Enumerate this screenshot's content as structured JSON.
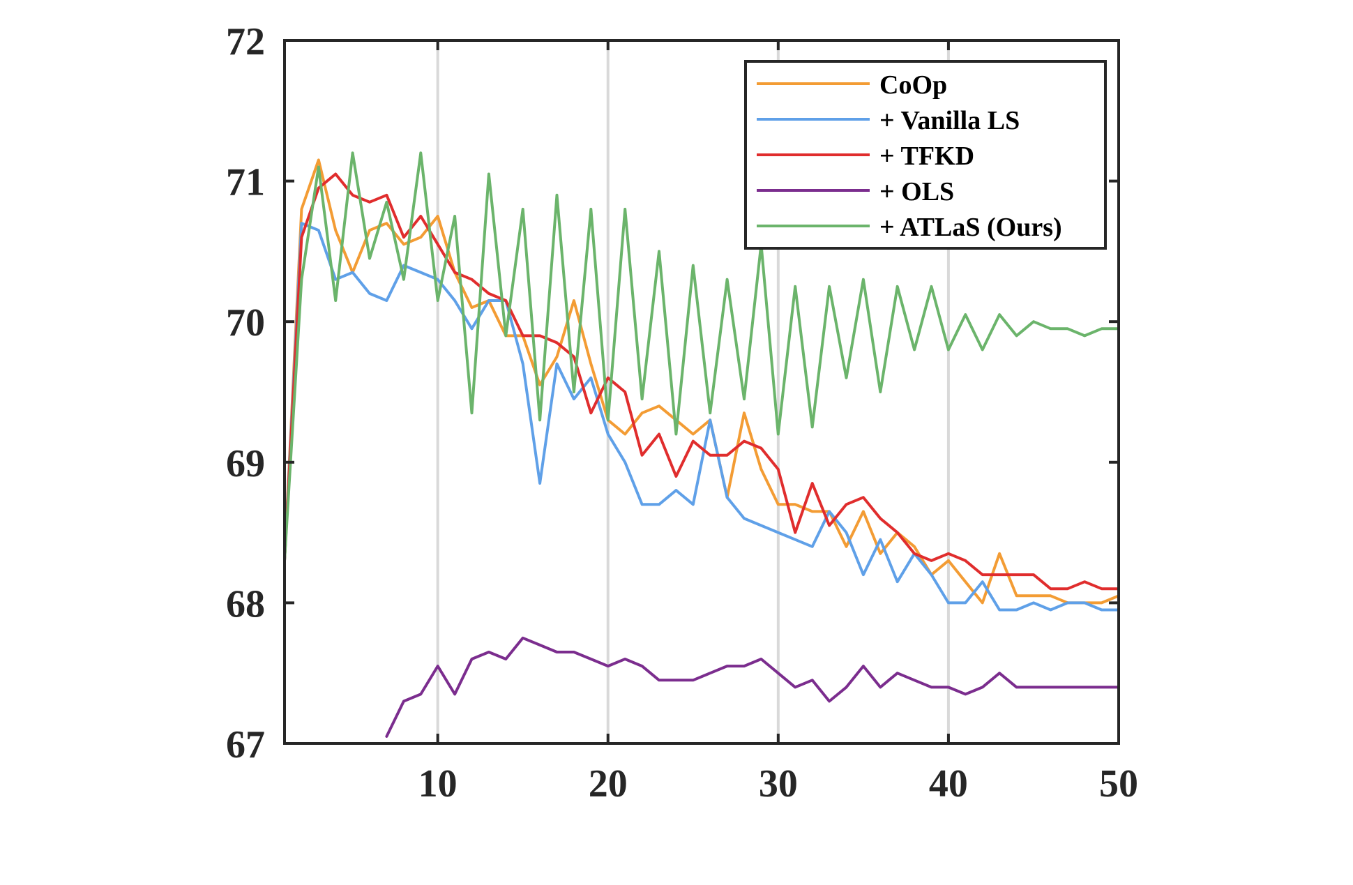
{
  "chart_data": {
    "type": "line",
    "title": "",
    "xlabel": "",
    "ylabel": "",
    "xlim": [
      1,
      50
    ],
    "ylim": [
      67,
      72
    ],
    "xticks": [
      10,
      20,
      30,
      40,
      50
    ],
    "yticks": [
      67,
      68,
      69,
      70,
      71,
      72
    ],
    "x_tick_labels": [
      "10",
      "20",
      "30",
      "40",
      "50"
    ],
    "y_tick_labels": [
      "67",
      "68",
      "69",
      "70",
      "71",
      "72"
    ],
    "grid": "vertical",
    "legend_position": "top-right",
    "series": [
      {
        "name": "CoOp",
        "color": "#F39C34",
        "x": [
          1,
          2,
          3,
          4,
          5,
          6,
          7,
          8,
          9,
          10,
          11,
          12,
          13,
          14,
          15,
          16,
          17,
          18,
          19,
          20,
          21,
          22,
          23,
          24,
          25,
          26,
          27,
          28,
          29,
          30,
          31,
          32,
          33,
          34,
          35,
          36,
          37,
          38,
          39,
          40,
          41,
          42,
          43,
          44,
          45,
          46,
          47,
          48,
          49,
          50
        ],
        "values": [
          68.3,
          70.8,
          71.15,
          70.65,
          70.35,
          70.65,
          70.7,
          70.55,
          70.6,
          70.75,
          70.35,
          70.1,
          70.15,
          69.9,
          69.9,
          69.55,
          69.75,
          70.15,
          69.7,
          69.3,
          69.2,
          69.35,
          69.4,
          69.3,
          69.2,
          69.3,
          68.75,
          69.35,
          68.95,
          68.7,
          68.7,
          68.65,
          68.65,
          68.4,
          68.65,
          68.35,
          68.5,
          68.4,
          68.2,
          68.3,
          68.15,
          68.0,
          68.35,
          68.05,
          68.05,
          68.05,
          68.0,
          68.0,
          68.0,
          68.05
        ]
      },
      {
        "name": "+ Vanilla LS",
        "color": "#5FA0E8",
        "x": [
          1,
          2,
          3,
          4,
          5,
          6,
          7,
          8,
          9,
          10,
          11,
          12,
          13,
          14,
          15,
          16,
          17,
          18,
          19,
          20,
          21,
          22,
          23,
          24,
          25,
          26,
          27,
          28,
          29,
          30,
          31,
          32,
          33,
          34,
          35,
          36,
          37,
          38,
          39,
          40,
          41,
          42,
          43,
          44,
          45,
          46,
          47,
          48,
          49,
          50
        ],
        "values": [
          68.3,
          70.7,
          70.65,
          70.3,
          70.35,
          70.2,
          70.15,
          70.4,
          70.35,
          70.3,
          70.15,
          69.95,
          70.15,
          70.15,
          69.7,
          68.85,
          69.7,
          69.45,
          69.6,
          69.2,
          69.0,
          68.7,
          68.7,
          68.8,
          68.7,
          69.3,
          68.75,
          68.6,
          68.55,
          68.5,
          68.45,
          68.4,
          68.65,
          68.5,
          68.2,
          68.45,
          68.15,
          68.35,
          68.2,
          68.0,
          68.0,
          68.15,
          67.95,
          67.95,
          68.0,
          67.95,
          68.0,
          68.0,
          67.95,
          67.95
        ]
      },
      {
        "name": "+ TFKD",
        "color": "#E02D2D",
        "x": [
          1,
          2,
          3,
          4,
          5,
          6,
          7,
          8,
          9,
          10,
          11,
          12,
          13,
          14,
          15,
          16,
          17,
          18,
          19,
          20,
          21,
          22,
          23,
          24,
          25,
          26,
          27,
          28,
          29,
          30,
          31,
          32,
          33,
          34,
          35,
          36,
          37,
          38,
          39,
          40,
          41,
          42,
          43,
          44,
          45,
          46,
          47,
          48,
          49,
          50
        ],
        "values": [
          68.3,
          70.6,
          70.95,
          71.05,
          70.9,
          70.85,
          70.9,
          70.6,
          70.75,
          70.55,
          70.35,
          70.3,
          70.2,
          70.15,
          69.9,
          69.9,
          69.85,
          69.75,
          69.35,
          69.6,
          69.5,
          69.05,
          69.2,
          68.9,
          69.15,
          69.05,
          69.05,
          69.15,
          69.1,
          68.95,
          68.5,
          68.85,
          68.55,
          68.7,
          68.75,
          68.6,
          68.5,
          68.35,
          68.3,
          68.35,
          68.3,
          68.2,
          68.2,
          68.2,
          68.2,
          68.1,
          68.1,
          68.15,
          68.1,
          68.1
        ]
      },
      {
        "name": "+ OLS",
        "color": "#7B2D8E",
        "x": [
          7,
          8,
          9,
          10,
          11,
          12,
          13,
          14,
          15,
          16,
          17,
          18,
          19,
          20,
          21,
          22,
          23,
          24,
          25,
          26,
          27,
          28,
          29,
          30,
          31,
          32,
          33,
          34,
          35,
          36,
          37,
          38,
          39,
          40,
          41,
          42,
          43,
          44,
          45,
          46,
          47,
          48,
          49,
          50
        ],
        "values": [
          67.05,
          67.3,
          67.35,
          67.55,
          67.35,
          67.6,
          67.65,
          67.6,
          67.75,
          67.7,
          67.65,
          67.65,
          67.6,
          67.55,
          67.6,
          67.55,
          67.45,
          67.45,
          67.45,
          67.5,
          67.55,
          67.55,
          67.6,
          67.5,
          67.4,
          67.45,
          67.3,
          67.4,
          67.55,
          67.4,
          67.5,
          67.45,
          67.4,
          67.4,
          67.35,
          67.4,
          67.5,
          67.4,
          67.4,
          67.4,
          67.4,
          67.4,
          67.4,
          67.4
        ]
      },
      {
        "name": "+ ATLaS (Ours)",
        "color": "#6BB46B",
        "x": [
          1,
          2,
          3,
          4,
          5,
          6,
          7,
          8,
          9,
          10,
          11,
          12,
          13,
          14,
          15,
          16,
          17,
          18,
          19,
          20,
          21,
          22,
          23,
          24,
          25,
          26,
          27,
          28,
          29,
          30,
          31,
          32,
          33,
          34,
          35,
          36,
          37,
          38,
          39,
          40,
          41,
          42,
          43,
          44,
          45,
          46,
          47,
          48,
          49,
          50
        ],
        "values": [
          68.3,
          70.3,
          71.1,
          70.15,
          71.2,
          70.45,
          70.85,
          70.3,
          71.2,
          70.15,
          70.75,
          69.35,
          71.05,
          69.9,
          70.8,
          69.3,
          70.9,
          69.5,
          70.8,
          69.3,
          70.8,
          69.45,
          70.5,
          69.2,
          70.4,
          69.35,
          70.3,
          69.45,
          70.55,
          69.2,
          70.25,
          69.25,
          70.25,
          69.6,
          70.3,
          69.5,
          70.25,
          69.8,
          70.25,
          69.8,
          70.05,
          69.8,
          70.05,
          69.9,
          70.0,
          69.95,
          69.95,
          69.9,
          69.95,
          69.95
        ]
      }
    ]
  }
}
